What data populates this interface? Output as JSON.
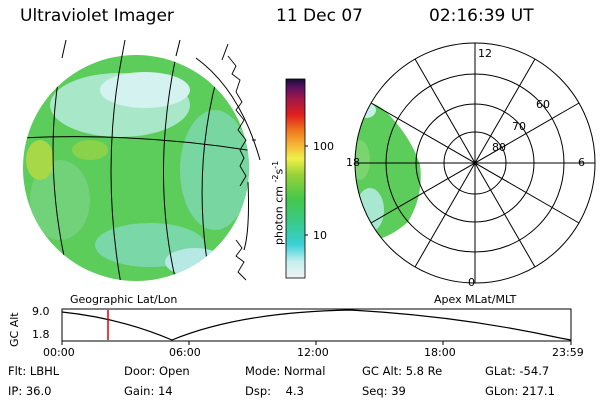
{
  "header": {
    "instrument": "Ultraviolet Imager",
    "date": "11 Dec 07",
    "time": "02:16:39 UT"
  },
  "colorbar": {
    "unit_label": "photon cm",
    "unit_exp1": "-2",
    "unit_s": "s",
    "unit_exp2": "-1",
    "ticks": [
      "100",
      "10"
    ]
  },
  "geo_panel": {
    "label": "Geographic Lat/Lon"
  },
  "polar_panel": {
    "label": "Apex MLat/MLT",
    "mlt_labels": [
      "12",
      "18",
      "6",
      "0"
    ],
    "lat_labels": [
      "60",
      "70",
      "80"
    ]
  },
  "altitude_plot": {
    "ylabel": "GC Alt",
    "yticks": [
      "9.0",
      "1.8"
    ],
    "xticks": [
      "00:00",
      "06:00",
      "12:00",
      "18:00",
      "23:59"
    ],
    "marker_color": "#e00000"
  },
  "info": {
    "row1": [
      {
        "label": "Flt:",
        "value": "LBHL"
      },
      {
        "label": "Door:",
        "value": "Open"
      },
      {
        "label": "Mode:",
        "value": "Normal"
      },
      {
        "label": "GC Alt:",
        "value": "5.8 Re"
      },
      {
        "label": "GLat:",
        "value": "-54.7"
      }
    ],
    "row2": [
      {
        "label": "IP:",
        "value": "36.0"
      },
      {
        "label": "Gain:",
        "value": "14"
      },
      {
        "label": "Dsp:",
        "value": "4.3"
      },
      {
        "label": "Seq:",
        "value": "39"
      },
      {
        "label": "GLon:",
        "value": "217.1"
      }
    ]
  }
}
